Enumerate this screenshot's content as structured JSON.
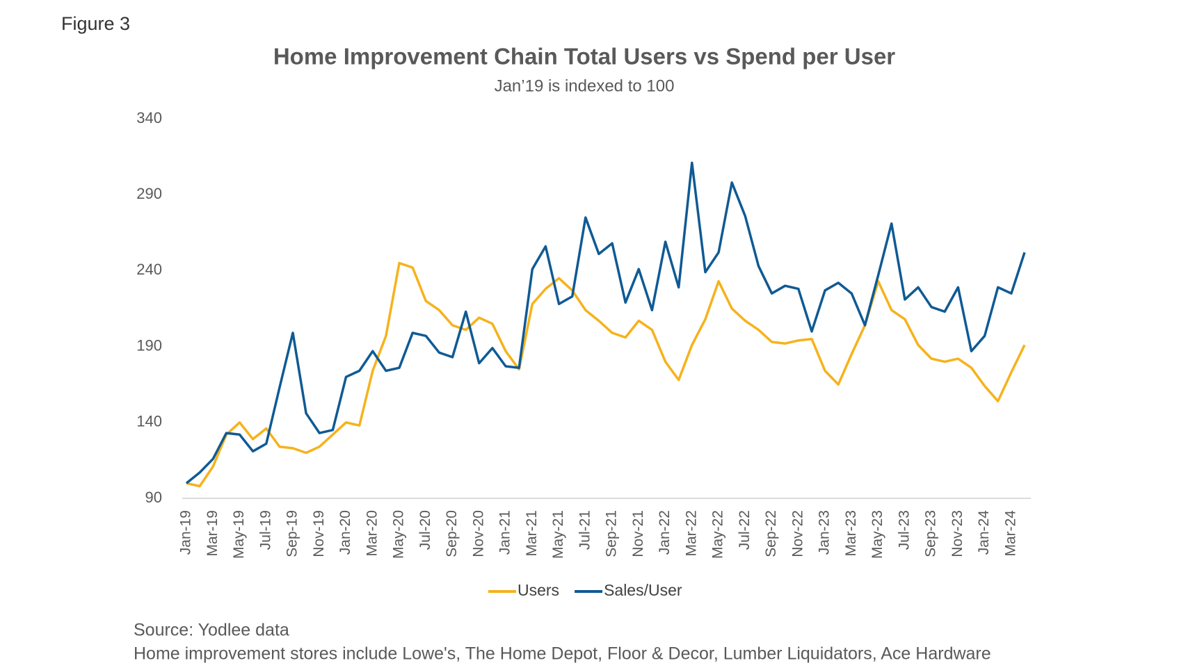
{
  "figure_label": "Figure 3",
  "chart_data": {
    "type": "line",
    "title": "Home Improvement Chain Total Users vs Spend per User",
    "subtitle": "Jan’19 is indexed to 100",
    "categories": [
      "Jan-19",
      null,
      "Mar-19",
      null,
      "May-19",
      null,
      "Jul-19",
      null,
      "Sep-19",
      null,
      "Nov-19",
      null,
      "Jan-20",
      null,
      "Mar-20",
      null,
      "May-20",
      null,
      "Jul-20",
      null,
      "Sep-20",
      null,
      "Nov-20",
      null,
      "Jan-21",
      null,
      "Mar-21",
      null,
      "May-21",
      null,
      "Jul-21",
      null,
      "Sep-21",
      null,
      "Nov-21",
      null,
      "Jan-22",
      null,
      "Mar-22",
      null,
      "May-22",
      null,
      "Jul-22",
      null,
      "Sep-22",
      null,
      "Nov-22",
      null,
      "Jan-23",
      null,
      "Mar-23",
      null,
      "May-23",
      null,
      "Jul-23",
      null,
      "Sep-23",
      null,
      "Nov-23",
      null,
      "Jan-24",
      null,
      "Mar-24",
      null
    ],
    "series": [
      {
        "name": "Users",
        "color": "#f6b21b",
        "values": [
          100,
          98,
          111,
          132,
          140,
          129,
          136,
          124,
          123,
          120,
          124,
          132,
          140,
          138,
          174,
          197,
          245,
          242,
          220,
          214,
          204,
          201,
          209,
          205,
          187,
          175,
          218,
          228,
          235,
          227,
          214,
          207,
          199,
          196,
          207,
          201,
          180,
          168,
          191,
          208,
          233,
          215,
          207,
          201,
          193,
          192,
          194,
          195,
          174,
          165,
          185,
          204,
          233,
          214,
          208,
          191,
          182,
          180,
          182,
          176,
          164,
          154,
          173,
          191
        ]
      },
      {
        "name": "Sales/User",
        "color": "#0f5a94",
        "values": [
          100,
          107,
          116,
          133,
          132,
          121,
          126,
          163,
          199,
          146,
          133,
          135,
          170,
          174,
          187,
          174,
          176,
          199,
          197,
          186,
          183,
          213,
          179,
          189,
          177,
          176,
          241,
          256,
          218,
          223,
          275,
          251,
          258,
          219,
          241,
          214,
          259,
          229,
          311,
          239,
          252,
          298,
          276,
          243,
          225,
          230,
          228,
          200,
          227,
          232,
          225,
          204,
          237,
          271,
          221,
          229,
          216,
          213,
          229,
          187,
          197,
          229,
          225,
          252
        ]
      }
    ],
    "ylim": [
      90,
      340
    ],
    "yticks": [
      90,
      140,
      190,
      240,
      290,
      340
    ],
    "grid": false,
    "legend": "bottom"
  },
  "notes": [
    "Source: Yodlee data",
    "Home improvement stores include Lowe's, The Home Depot, Floor & Decor, Lumber Liquidators, Ace Hardware"
  ]
}
